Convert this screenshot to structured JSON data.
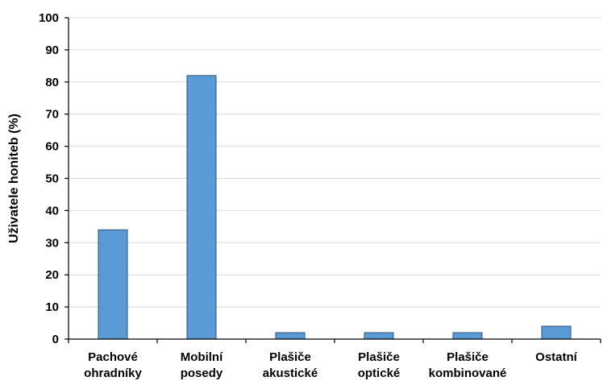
{
  "chart_data": {
    "type": "bar",
    "title": "",
    "xlabel": "",
    "ylabel": "Uživatele honiteb (%)",
    "ylim": [
      0,
      100
    ],
    "yticks": [
      0,
      10,
      20,
      30,
      40,
      50,
      60,
      70,
      80,
      90,
      100
    ],
    "grid": true,
    "categories": [
      [
        "Pachové",
        "ohradníky"
      ],
      [
        "Mobilní",
        "posedy"
      ],
      [
        "Plašiče",
        "akustické"
      ],
      [
        "Plašiče",
        "optické"
      ],
      [
        "Plašiče",
        "kombinované"
      ],
      [
        "Ostatní"
      ]
    ],
    "values": [
      34,
      82,
      2,
      2,
      2,
      4
    ],
    "colors": {
      "bar_fill": "#5b9bd5",
      "bar_stroke": "#2f4f7a",
      "grid": "#d9d9d9",
      "axis": "#000000"
    }
  }
}
